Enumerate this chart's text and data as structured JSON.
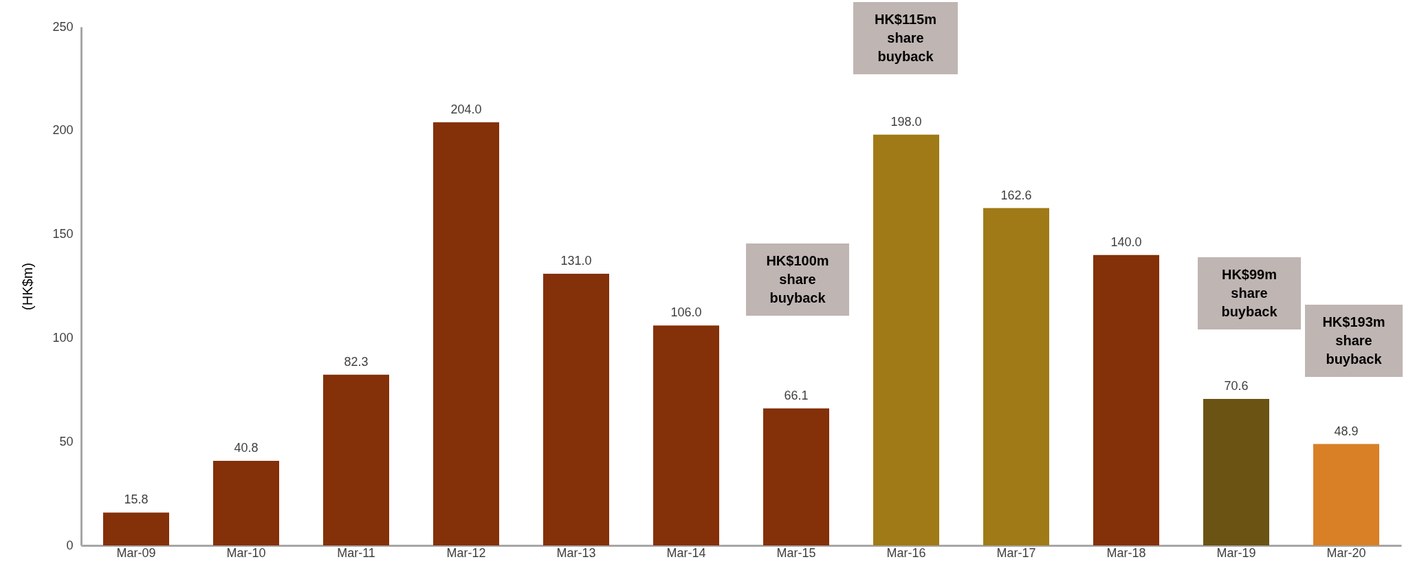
{
  "chart_data": {
    "type": "bar",
    "ylabel": "(HK$m)",
    "categories": [
      "Mar-09",
      "Mar-10",
      "Mar-11",
      "Mar-12",
      "Mar-13",
      "Mar-14",
      "Mar-15",
      "Mar-16",
      "Mar-17",
      "Mar-18",
      "Mar-19",
      "Mar-20"
    ],
    "values": [
      15.8,
      40.8,
      82.3,
      204.0,
      131.0,
      106.0,
      66.1,
      198.0,
      162.6,
      140.0,
      70.6,
      48.9
    ],
    "colors": [
      "#843009",
      "#843009",
      "#843009",
      "#843009",
      "#843009",
      "#843009",
      "#843009",
      "#a07a17",
      "#a07a17",
      "#843009",
      "#6b5314",
      "#d97f26"
    ],
    "value_labels": [
      "15.8",
      "40.8",
      "82.3",
      "204.0",
      "131.0",
      "106.0",
      "66.1",
      "198.0",
      "162.6",
      "140.0",
      "70.6",
      "48.9"
    ],
    "ylim": [
      0,
      250
    ],
    "yticks": [
      0,
      50,
      100,
      150,
      200,
      250
    ],
    "grid": false,
    "annotations": [
      "HK$100m\nshare\nbuyback",
      "HK$115m\nshare\nbuyback",
      "HK$99m\nshare\nbuyback",
      "HK$193m\nshare\nbuyback"
    ]
  }
}
